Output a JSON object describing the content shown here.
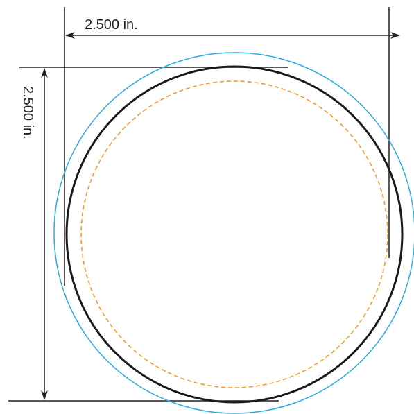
{
  "dimensions": {
    "width_label": "2.500 in.",
    "height_label": "2.500 in."
  },
  "colors": {
    "background": "#ffffff",
    "cut_line": "#1a1a1a",
    "bleed_line": "#29abe2",
    "safe_line": "#f7931e",
    "dimension_line": "#231f20"
  }
}
